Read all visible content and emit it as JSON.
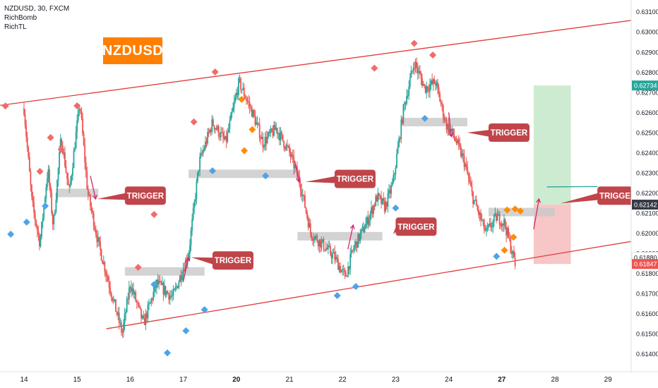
{
  "header": {
    "symbol_line": "NZDUSD, 30, FXCM",
    "indicator_1": "RichBomb",
    "indicator_2": "RichTL"
  },
  "symbol_badge": "NZDUSD",
  "annotation_label": "TRIGGER",
  "colors": {
    "channel": "#e03c3c",
    "candle_up": "#26a69a",
    "candle_down": "#ef5350",
    "bomb_top": "#f26b6b",
    "bomb_bottom": "#4da3e8",
    "bomb_mid": "#ff8c00",
    "trigger_zone": "#c8c8c8",
    "trigger_label": "#c0454a",
    "trade_target": "#cdebd0",
    "trade_stop": "#f7c6c6",
    "badge": "#ff7f00"
  },
  "chart_data": {
    "type": "candlestick",
    "symbol": "NZDUSD",
    "timeframe": "30",
    "y_axis": {
      "range": [
        0.6135,
        0.6312
      ],
      "ticks": [
        "0.63100",
        "0.63000",
        "0.62900",
        "0.62800",
        "0.62700",
        "0.62600",
        "0.62500",
        "0.62400",
        "0.62300",
        "0.62200",
        "0.62100",
        "0.62000",
        "0.61900",
        "0.61800",
        "0.61700",
        "0.61600",
        "0.61500",
        "0.61400"
      ]
    },
    "x_axis": {
      "labels": [
        {
          "text": "14",
          "day": 0
        },
        {
          "text": "15",
          "day": 1
        },
        {
          "text": "16",
          "day": 2
        },
        {
          "text": "17",
          "day": 3
        },
        {
          "text": "20",
          "day": 4,
          "bold": true
        },
        {
          "text": "21",
          "day": 5
        },
        {
          "text": "22",
          "day": 6
        },
        {
          "text": "23",
          "day": 7
        },
        {
          "text": "24",
          "day": 8
        },
        {
          "text": "27",
          "day": 9,
          "bold": true
        },
        {
          "text": "28",
          "day": 10
        },
        {
          "text": "29",
          "day": 11
        }
      ]
    },
    "price_tags": [
      {
        "label": "0.62734",
        "value": 0.62734,
        "color": "#26a69a"
      },
      {
        "label": "0.62142",
        "value": 0.62142,
        "color": "#363a45"
      },
      {
        "label": "0.61880",
        "value": 0.6188,
        "color": "#ffffff"
      },
      {
        "label": "0.61847",
        "value": 0.61847,
        "color": "#ef5350"
      }
    ],
    "path": [
      [
        0.0,
        0.6262
      ],
      [
        0.15,
        0.6215
      ],
      [
        0.3,
        0.6195
      ],
      [
        0.45,
        0.6232
      ],
      [
        0.55,
        0.6203
      ],
      [
        0.7,
        0.6248
      ],
      [
        0.85,
        0.622
      ],
      [
        1.05,
        0.6265
      ],
      [
        1.2,
        0.622
      ],
      [
        1.4,
        0.6195
      ],
      [
        1.6,
        0.6175
      ],
      [
        1.85,
        0.615
      ],
      [
        2.0,
        0.6175
      ],
      [
        2.25,
        0.6155
      ],
      [
        2.5,
        0.6175
      ],
      [
        2.8,
        0.6168
      ],
      [
        3.1,
        0.619
      ],
      [
        3.3,
        0.6235
      ],
      [
        3.55,
        0.6255
      ],
      [
        3.8,
        0.6245
      ],
      [
        4.05,
        0.6275
      ],
      [
        4.3,
        0.626
      ],
      [
        4.5,
        0.6245
      ],
      [
        4.75,
        0.6252
      ],
      [
        5.0,
        0.624
      ],
      [
        5.2,
        0.6225
      ],
      [
        5.4,
        0.62
      ],
      [
        5.6,
        0.6195
      ],
      [
        5.85,
        0.6188
      ],
      [
        6.05,
        0.6178
      ],
      [
        6.2,
        0.6192
      ],
      [
        6.45,
        0.6205
      ],
      [
        6.65,
        0.6218
      ],
      [
        6.8,
        0.6213
      ],
      [
        6.95,
        0.6225
      ],
      [
        7.15,
        0.6262
      ],
      [
        7.35,
        0.6285
      ],
      [
        7.55,
        0.6272
      ],
      [
        7.75,
        0.6275
      ],
      [
        7.95,
        0.6254
      ],
      [
        8.1,
        0.6248
      ],
      [
        8.3,
        0.6235
      ],
      [
        8.45,
        0.6218
      ],
      [
        8.7,
        0.62
      ],
      [
        8.9,
        0.6208
      ],
      [
        9.05,
        0.6205
      ],
      [
        9.15,
        0.6195
      ],
      [
        9.25,
        0.61847
      ]
    ],
    "channel": {
      "upper": [
        [
          -0.45,
          0.62635
        ],
        [
          11.6,
          0.63063
        ]
      ],
      "lower": [
        [
          1.55,
          0.61525
        ],
        [
          11.6,
          0.61966
        ]
      ]
    },
    "trigger_zones": [
      {
        "day_start": 0.6,
        "day_end": 1.4,
        "price": 0.622
      },
      {
        "day_start": 1.9,
        "day_end": 3.4,
        "price": 0.6181
      },
      {
        "day_start": 3.1,
        "day_end": 5.2,
        "price": 0.62295
      },
      {
        "day_start": 5.15,
        "day_end": 6.75,
        "price": 0.61985
      },
      {
        "day_start": 7.1,
        "day_end": 8.35,
        "price": 0.62552
      },
      {
        "day_start": 8.75,
        "day_end": 10.0,
        "price": 0.62105
      }
    ],
    "trigger_labels": [
      {
        "day": 1.9,
        "price": 0.62232,
        "arrow_to": [
          1.38,
          0.6217
        ]
      },
      {
        "day": 3.55,
        "price": 0.6191,
        "arrow_to": [
          3.15,
          0.6188
        ]
      },
      {
        "day": 5.85,
        "price": 0.62315,
        "arrow_to": [
          5.3,
          0.62255
        ]
      },
      {
        "day": 7.0,
        "price": 0.62078,
        "arrow_to": [
          6.95,
          0.61995
        ]
      },
      {
        "day": 8.75,
        "price": 0.62545,
        "arrow_to": [
          8.35,
          0.625
        ]
      },
      {
        "day": 10.8,
        "price": 0.62232,
        "arrow_to": [
          10.1,
          0.62148
        ]
      }
    ],
    "signal_arrows": [
      {
        "day_from": 1.25,
        "price_from": 0.62285,
        "day_to": 1.35,
        "price_to": 0.6217
      },
      {
        "day_from": 3.0,
        "price_from": 0.6176,
        "day_to": 3.1,
        "price_to": 0.6188
      },
      {
        "day_from": 5.1,
        "price_from": 0.6236,
        "day_to": 5.18,
        "price_to": 0.62255
      },
      {
        "day_from": 6.1,
        "price_from": 0.6192,
        "day_to": 6.2,
        "price_to": 0.6204
      },
      {
        "day_from": 8.0,
        "price_from": 0.626,
        "day_to": 8.05,
        "price_to": 0.6248
      },
      {
        "day_from": 9.6,
        "price_from": 0.6202,
        "day_to": 9.7,
        "price_to": 0.6217
      }
    ],
    "bombs_top": [
      [
        -0.35,
        0.62632
      ],
      [
        0.3,
        0.62307
      ],
      [
        0.5,
        0.62475
      ],
      [
        0.7,
        0.62417
      ],
      [
        1.0,
        0.62633
      ],
      [
        2.45,
        0.62093
      ],
      [
        3.2,
        0.62553
      ],
      [
        3.6,
        0.62801
      ],
      [
        6.6,
        0.6282
      ],
      [
        7.35,
        0.62943
      ],
      [
        7.7,
        0.62885
      ],
      [
        2.15,
        0.6183
      ]
    ],
    "bombs_mid": [
      [
        4.1,
        0.62665
      ],
      [
        4.15,
        0.6241
      ],
      [
        4.3,
        0.62515
      ],
      [
        9.1,
        0.62115
      ],
      [
        9.25,
        0.6212
      ],
      [
        9.35,
        0.6211
      ],
      [
        9.22,
        0.6198
      ],
      [
        9.05,
        0.61915
      ]
    ],
    "bombs_bottom": [
      [
        -0.25,
        0.61995
      ],
      [
        0.05,
        0.62055
      ],
      [
        0.4,
        0.62135
      ],
      [
        2.45,
        0.61745
      ],
      [
        2.7,
        0.61405
      ],
      [
        3.05,
        0.61515
      ],
      [
        3.4,
        0.6162
      ],
      [
        3.55,
        0.6231
      ],
      [
        4.55,
        0.62285
      ],
      [
        5.9,
        0.6169
      ],
      [
        6.25,
        0.61735
      ],
      [
        7.0,
        0.62125
      ],
      [
        7.55,
        0.6257
      ],
      [
        8.9,
        0.61885
      ]
    ],
    "trade": {
      "entry": 0.62142,
      "target": 0.62734,
      "stop": 0.61847,
      "day_start": 9.6,
      "day_end": 10.3
    }
  }
}
